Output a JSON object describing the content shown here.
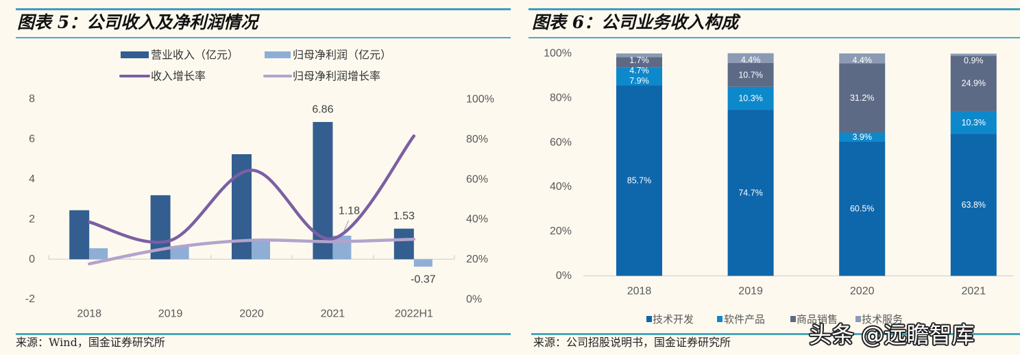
{
  "panels": {
    "left": {
      "figure_title": "图表 5：公司收入及净利润情况",
      "source": "来源：Wind，国金证券研究所"
    },
    "right": {
      "figure_title": "图表 6：公司业务收入构成",
      "source": "来源：公司招股说明书，国金证券研究所"
    }
  },
  "watermark": "头条 @远瞻智库",
  "theme": {
    "background": "#FDF9EF",
    "rule_color": "#3C9EC0",
    "axis_text_color": "#595959"
  },
  "chart_data": [
    {
      "type": "bar",
      "combo": "bar+line",
      "title": "公司收入及净利润情况",
      "categories": [
        "2018",
        "2019",
        "2020",
        "2021",
        "2022H1"
      ],
      "series": [
        {
          "name": "营业收入（亿元）",
          "chart_type": "bar",
          "axis": "left",
          "color": "#335E8F",
          "values": [
            2.45,
            3.2,
            5.25,
            6.86,
            1.53
          ]
        },
        {
          "name": "归母净利润（亿元）",
          "chart_type": "bar",
          "axis": "left",
          "color": "#8EAED6",
          "values": [
            0.55,
            0.65,
            0.92,
            1.18,
            -0.37
          ]
        },
        {
          "name": "收入增长率",
          "chart_type": "line",
          "axis": "right",
          "unit": "%",
          "color": "#7B5FA3",
          "values": [
            38.7,
            29.5,
            64.6,
            30.4,
            81.7
          ]
        },
        {
          "name": "归母净利润增长率",
          "chart_type": "line",
          "axis": "right",
          "unit": "%",
          "color": "#B3A3CC",
          "values": [
            17.8,
            25.8,
            29.6,
            28.9,
            30.1
          ]
        }
      ],
      "data_labels": [
        {
          "series": 0,
          "index": 3,
          "text": "6.86",
          "leader": false
        },
        {
          "series": 1,
          "index": 3,
          "text": "1.18",
          "leader": true
        },
        {
          "series": 0,
          "index": 4,
          "text": "1.53",
          "leader": false
        },
        {
          "series": 1,
          "index": 4,
          "text": "-0.37",
          "leader": false
        }
      ],
      "y_left": {
        "min": -2,
        "max": 8,
        "step": 2,
        "tick_labels": [
          "8",
          "6",
          "4",
          "2",
          "0",
          "-2"
        ]
      },
      "y_right": {
        "min": 0,
        "max": 100,
        "step": 20,
        "tick_labels": [
          "100%",
          "80%",
          "60%",
          "40%",
          "20%",
          "0%"
        ]
      },
      "xlabel": "",
      "ylabel": "",
      "grid": false,
      "legend": "top"
    },
    {
      "type": "bar",
      "stacked": true,
      "title": "公司业务收入构成",
      "categories": [
        "2018",
        "2019",
        "2020",
        "2021"
      ],
      "series": [
        {
          "name": "技术开发",
          "color": "#0E66AB",
          "values": [
            85.7,
            74.7,
            60.5,
            63.8
          ],
          "labels": [
            "85.7%",
            "74.7%",
            "60.5%",
            "63.8%"
          ]
        },
        {
          "name": "软件产品",
          "color": "#0D88CB",
          "values": [
            7.9,
            10.3,
            3.9,
            10.3
          ],
          "labels": [
            "7.9%",
            "10.3%",
            "3.9%",
            "10.3%"
          ]
        },
        {
          "name": "商品销售",
          "color": "#5C6A86",
          "values": [
            4.7,
            10.7,
            31.2,
            24.9
          ],
          "labels": [
            "4.7%",
            "10.7%",
            "31.2%",
            "24.9%"
          ]
        },
        {
          "name": "技术服务",
          "color": "#8C9AB3",
          "values": [
            1.7,
            4.4,
            4.4,
            0.9
          ],
          "labels": [
            "1.7%",
            "4.4%",
            "4.4%",
            "0.9%"
          ]
        }
      ],
      "y_axis": {
        "min": 0,
        "max": 100,
        "step": 20,
        "tick_labels": [
          "100%",
          "80%",
          "60%",
          "40%",
          "20%",
          "0%"
        ]
      },
      "ylim": [
        0,
        100
      ],
      "xlabel": "",
      "ylabel": "",
      "grid": false,
      "legend": "bottom"
    }
  ]
}
